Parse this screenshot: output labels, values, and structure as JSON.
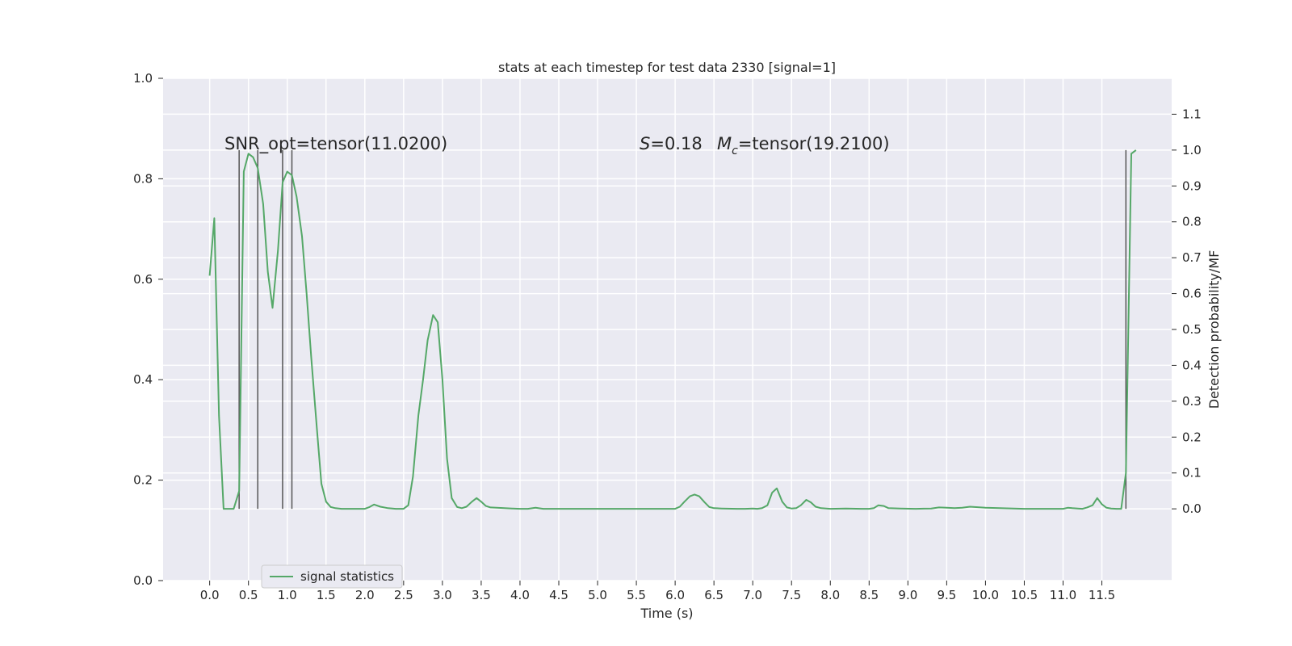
{
  "chart_data": {
    "type": "line",
    "title": "stats at each timestep for test data 2330 [signal=1]",
    "xlabel": "Time (s)",
    "ylabel": "",
    "ylabel_right": "Detection probability/MF",
    "xlim": [
      -0.6,
      12.4
    ],
    "ylim": [
      0.0,
      1.0
    ],
    "ylim_right": [
      -0.2,
      1.2
    ],
    "x_ticks": [
      0.0,
      0.5,
      1.0,
      1.5,
      2.0,
      2.5,
      3.0,
      3.5,
      4.0,
      4.5,
      5.0,
      5.5,
      6.0,
      6.5,
      7.0,
      7.5,
      8.0,
      8.5,
      9.0,
      9.5,
      10.0,
      10.5,
      11.0,
      11.5
    ],
    "x_tick_labels": [
      "0.0",
      "0.5",
      "1.0",
      "1.5",
      "2.0",
      "2.5",
      "3.0",
      "3.5",
      "4.0",
      "4.5",
      "5.0",
      "5.5",
      "6.0",
      "6.5",
      "7.0",
      "7.5",
      "8.0",
      "8.5",
      "9.0",
      "9.5",
      "10.0",
      "10.5",
      "11.0",
      "11.5"
    ],
    "y_ticks": [
      0.0,
      0.2,
      0.4,
      0.6,
      0.8,
      1.0
    ],
    "y_tick_labels": [
      "0.0",
      "0.2",
      "0.4",
      "0.6",
      "0.8",
      "1.0"
    ],
    "y_ticks_right": [
      0.0,
      0.1,
      0.2,
      0.3,
      0.4,
      0.5,
      0.6,
      0.7,
      0.8,
      0.9,
      1.0,
      1.1
    ],
    "y_tick_labels_right": [
      "0.0",
      "0.1",
      "0.2",
      "0.3",
      "0.4",
      "0.5",
      "0.6",
      "0.7",
      "0.8",
      "0.9",
      "1.0",
      "1.1"
    ],
    "grid": true,
    "legend_position": "lower-left",
    "series": [
      {
        "name": "signal statistics",
        "axis": "right",
        "color": "#55a868",
        "x": [
          0.0,
          0.06,
          0.12,
          0.18,
          0.25,
          0.31,
          0.38,
          0.44,
          0.5,
          0.56,
          0.62,
          0.69,
          0.75,
          0.81,
          0.88,
          0.94,
          1.0,
          1.06,
          1.12,
          1.19,
          1.25,
          1.31,
          1.38,
          1.44,
          1.5,
          1.56,
          1.62,
          1.7,
          1.8,
          1.9,
          2.0,
          2.06,
          2.12,
          2.2,
          2.3,
          2.4,
          2.5,
          2.56,
          2.62,
          2.69,
          2.75,
          2.81,
          2.88,
          2.94,
          3.0,
          3.06,
          3.12,
          3.19,
          3.25,
          3.31,
          3.38,
          3.44,
          3.5,
          3.56,
          3.62,
          3.7,
          3.8,
          3.9,
          4.0,
          4.1,
          4.2,
          4.3,
          4.5,
          5.0,
          5.5,
          5.8,
          6.0,
          6.06,
          6.12,
          6.19,
          6.25,
          6.31,
          6.38,
          6.44,
          6.5,
          6.6,
          6.8,
          6.9,
          7.0,
          7.06,
          7.12,
          7.19,
          7.25,
          7.31,
          7.38,
          7.44,
          7.5,
          7.56,
          7.62,
          7.69,
          7.75,
          7.81,
          7.88,
          8.0,
          8.2,
          8.4,
          8.5,
          8.56,
          8.62,
          8.69,
          8.75,
          8.9,
          9.1,
          9.3,
          9.4,
          9.5,
          9.6,
          9.7,
          9.8,
          10.0,
          10.5,
          10.9,
          11.0,
          11.06,
          11.12,
          11.19,
          11.25,
          11.31,
          11.38,
          11.44,
          11.5,
          11.56,
          11.62,
          11.69,
          11.75,
          11.81,
          11.88,
          11.94
        ],
        "values": [
          0.65,
          0.81,
          0.26,
          0.0,
          0.0,
          0.0,
          0.05,
          0.94,
          0.99,
          0.98,
          0.95,
          0.85,
          0.66,
          0.56,
          0.72,
          0.91,
          0.94,
          0.93,
          0.87,
          0.76,
          0.6,
          0.42,
          0.23,
          0.07,
          0.02,
          0.005,
          0.002,
          0.0,
          0.0,
          0.0,
          0.0,
          0.005,
          0.012,
          0.006,
          0.002,
          0.0,
          0.0,
          0.01,
          0.09,
          0.26,
          0.36,
          0.47,
          0.54,
          0.52,
          0.36,
          0.14,
          0.03,
          0.005,
          0.002,
          0.006,
          0.02,
          0.03,
          0.02,
          0.008,
          0.004,
          0.003,
          0.002,
          0.001,
          0.0,
          0.0,
          0.003,
          0.0,
          0.0,
          0.0,
          0.0,
          0.0,
          0.0,
          0.006,
          0.02,
          0.035,
          0.04,
          0.035,
          0.018,
          0.005,
          0.002,
          0.001,
          0.0,
          0.0,
          0.001,
          0.0,
          0.002,
          0.01,
          0.045,
          0.057,
          0.02,
          0.004,
          0.001,
          0.002,
          0.01,
          0.025,
          0.018,
          0.006,
          0.002,
          0.0,
          0.001,
          0.0,
          0.0,
          0.002,
          0.01,
          0.008,
          0.002,
          0.001,
          0.0,
          0.001,
          0.004,
          0.003,
          0.002,
          0.003,
          0.006,
          0.003,
          0.0,
          0.0,
          0.0,
          0.003,
          0.002,
          0.001,
          0.0,
          0.004,
          0.01,
          0.03,
          0.013,
          0.003,
          0.001,
          0.0,
          0.0,
          0.1,
          0.99,
          1.0
        ]
      }
    ],
    "vertical_lines": {
      "axis": "right",
      "x": [
        0.38,
        0.62,
        0.94,
        1.06,
        11.81
      ],
      "ymin": 0.0,
      "ymax": 1.0,
      "color": "#555555"
    },
    "annotations": [
      {
        "text": "SNR_opt=tensor(11.0200)",
        "x": 0.2,
        "y": 0.855
      },
      {
        "text": "=0.18",
        "x": 5.5,
        "y": 0.855
      },
      {
        "text": "=tensor(19.2100)",
        "x": 6.55,
        "y": 0.855
      }
    ]
  },
  "annotation_symbols": {
    "s": "S",
    "m": "M",
    "m_sub": "c"
  },
  "legend": {
    "label": "signal statistics"
  }
}
